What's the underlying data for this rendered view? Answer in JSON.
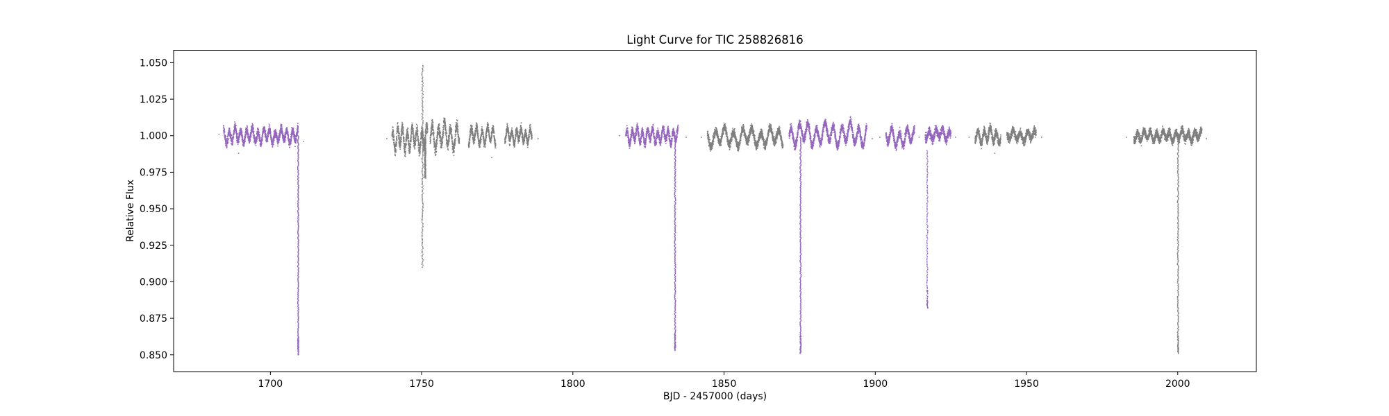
{
  "chart_data": {
    "type": "scatter",
    "title": "Light Curve for TIC 258826816",
    "xlabel": "BJD - 2457000 (days)",
    "ylabel": "Relative Flux",
    "xlim": [
      1668,
      2026
    ],
    "ylim": [
      0.8385,
      1.0585
    ],
    "xticks": [
      1700,
      1750,
      1800,
      1850,
      1900,
      1950,
      2000
    ],
    "xtick_labels": [
      "1700",
      "1750",
      "1800",
      "1850",
      "1900",
      "1950",
      "2000"
    ],
    "yticks": [
      0.85,
      0.875,
      0.9,
      0.925,
      0.95,
      0.975,
      1.0,
      1.025,
      1.05
    ],
    "ytick_labels": [
      "0.850",
      "0.875",
      "0.900",
      "0.925",
      "0.950",
      "0.975",
      "1.000",
      "1.025",
      "1.050"
    ],
    "grid": false,
    "legend": false,
    "colors": {
      "purple": "#9467bd",
      "gray": "#7f7f7f"
    },
    "segments": [
      {
        "color": "purple",
        "x": [
          1684.5,
          1709.2
        ],
        "base": 1.0,
        "amp": 0.004,
        "noise": 0.002,
        "period": 1.9
      },
      {
        "color": "gray",
        "x": [
          1740.2,
          1752.0
        ],
        "base": 0.998,
        "amp": 0.006,
        "noise": 0.003,
        "period": 1.6
      },
      {
        "color": "gray",
        "x": [
          1752.8,
          1762.5
        ],
        "base": 1.0,
        "amp": 0.007,
        "noise": 0.003,
        "period": 2.0
      },
      {
        "color": "gray",
        "x": [
          1765.5,
          1774.5
        ],
        "base": 1.0,
        "amp": 0.005,
        "noise": 0.002,
        "period": 1.8
      },
      {
        "color": "gray",
        "x": [
          1777.5,
          1786.5
        ],
        "base": 1.0,
        "amp": 0.004,
        "noise": 0.002,
        "period": 1.5
      },
      {
        "color": "purple",
        "x": [
          1817.5,
          1834.8
        ],
        "base": 1.0,
        "amp": 0.004,
        "noise": 0.002,
        "period": 1.7
      },
      {
        "color": "gray",
        "x": [
          1844.5,
          1869.5
        ],
        "base": 0.999,
        "amp": 0.005,
        "noise": 0.002,
        "period": 3.0
      },
      {
        "color": "purple",
        "x": [
          1871.5,
          1897.2
        ],
        "base": 1.001,
        "amp": 0.006,
        "noise": 0.002,
        "period": 2.8
      },
      {
        "color": "purple",
        "x": [
          1903.5,
          1913.0
        ],
        "base": 0.999,
        "amp": 0.005,
        "noise": 0.002,
        "period": 2.5
      },
      {
        "color": "purple",
        "x": [
          1916.5,
          1925.0
        ],
        "base": 1.001,
        "amp": 0.003,
        "noise": 0.002,
        "period": 2.2
      },
      {
        "color": "gray",
        "x": [
          1933.0,
          1941.5
        ],
        "base": 1.0,
        "amp": 0.004,
        "noise": 0.002,
        "period": 2.0
      },
      {
        "color": "gray",
        "x": [
          1943.5,
          1953.2
        ],
        "base": 1.0,
        "amp": 0.003,
        "noise": 0.002,
        "period": 2.4
      },
      {
        "color": "gray",
        "x": [
          1985.5,
          2008.0
        ],
        "base": 1.0,
        "amp": 0.003,
        "noise": 0.002,
        "period": 2.1
      }
    ],
    "dips": [
      {
        "color": "purple",
        "x": 1709.2,
        "min": 0.85,
        "max": 1.0,
        "density": 1.0
      },
      {
        "color": "purple",
        "x": 1833.8,
        "min": 0.853,
        "max": 0.999,
        "density": 1.0
      },
      {
        "color": "purple",
        "x": 1875.3,
        "min": 0.851,
        "max": 0.999,
        "density": 1.0
      },
      {
        "color": "purple",
        "x": 1917.2,
        "min": 0.882,
        "max": 0.99,
        "density": 0.45
      },
      {
        "color": "gray",
        "x": 2000.1,
        "min": 0.851,
        "max": 0.999,
        "density": 0.8
      }
    ],
    "spikes": [
      {
        "color": "gray",
        "x": 1750.3,
        "min": 0.91,
        "max": 1.048
      },
      {
        "color": "gray",
        "x": 1751.2,
        "min": 0.971,
        "max": 0.998
      }
    ],
    "outliers": [
      {
        "color": "gray",
        "x": 1683.0,
        "y": 1.001
      },
      {
        "color": "purple",
        "x": 1711.0,
        "y": 0.996
      },
      {
        "color": "gray",
        "x": 1689.5,
        "y": 0.988
      },
      {
        "color": "gray",
        "x": 1738.5,
        "y": 0.998
      },
      {
        "color": "gray",
        "x": 1788.5,
        "y": 0.998
      },
      {
        "color": "gray",
        "x": 1815.5,
        "y": 1.0
      },
      {
        "color": "gray",
        "x": 1837.5,
        "y": 0.999
      },
      {
        "color": "gray",
        "x": 1842.5,
        "y": 0.999
      },
      {
        "color": "gray",
        "x": 1899.0,
        "y": 0.998
      },
      {
        "color": "gray",
        "x": 1901.5,
        "y": 0.999
      },
      {
        "color": "gray",
        "x": 1914.5,
        "y": 0.999
      },
      {
        "color": "gray",
        "x": 1926.5,
        "y": 0.999
      },
      {
        "color": "gray",
        "x": 1931.0,
        "y": 0.999
      },
      {
        "color": "gray",
        "x": 1955.0,
        "y": 0.999
      },
      {
        "color": "gray",
        "x": 1983.0,
        "y": 0.999
      },
      {
        "color": "gray",
        "x": 2009.5,
        "y": 0.998
      },
      {
        "color": "gray",
        "x": 1773.2,
        "y": 0.985
      },
      {
        "color": "gray",
        "x": 1939.5,
        "y": 0.988
      }
    ]
  }
}
